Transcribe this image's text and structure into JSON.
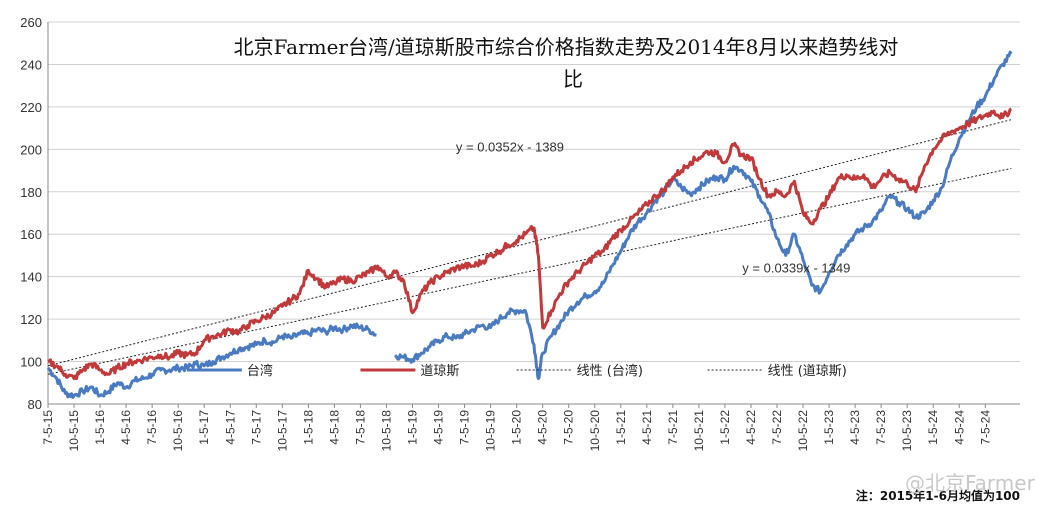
{
  "chart_data": {
    "type": "line",
    "title": "北京Farmer台湾/道琼斯股市综合价格指数走势及2014年8月以来趋势线对比",
    "ylim": [
      80,
      260
    ],
    "yticks": [
      80,
      100,
      120,
      140,
      160,
      180,
      200,
      220,
      240,
      260
    ],
    "xlim": [
      0,
      112
    ],
    "xticks": [
      {
        "x": 0,
        "label": "7-5-15"
      },
      {
        "x": 3,
        "label": "10-5-15"
      },
      {
        "x": 6,
        "label": "1-5-16"
      },
      {
        "x": 9,
        "label": "4-5-16"
      },
      {
        "x": 12,
        "label": "7-5-16"
      },
      {
        "x": 15,
        "label": "10-5-16"
      },
      {
        "x": 18,
        "label": "1-5-17"
      },
      {
        "x": 21,
        "label": "4-5-17"
      },
      {
        "x": 24,
        "label": "7-5-17"
      },
      {
        "x": 27,
        "label": "10-5-17"
      },
      {
        "x": 30,
        "label": "1-5-18"
      },
      {
        "x": 33,
        "label": "4-5-18"
      },
      {
        "x": 36,
        "label": "7-5-18"
      },
      {
        "x": 39,
        "label": "10-5-18"
      },
      {
        "x": 42,
        "label": "1-5-19"
      },
      {
        "x": 45,
        "label": "4-5-19"
      },
      {
        "x": 48,
        "label": "7-5-19"
      },
      {
        "x": 51,
        "label": "10-5-19"
      },
      {
        "x": 54,
        "label": "1-5-20"
      },
      {
        "x": 57,
        "label": "4-5-20"
      },
      {
        "x": 60,
        "label": "7-5-20"
      },
      {
        "x": 63,
        "label": "10-5-20"
      },
      {
        "x": 66,
        "label": "1-5-21"
      },
      {
        "x": 69,
        "label": "4-5-21"
      },
      {
        "x": 72,
        "label": "7-5-21"
      },
      {
        "x": 75,
        "label": "10-5-21"
      },
      {
        "x": 78,
        "label": "1-5-22"
      },
      {
        "x": 81,
        "label": "4-5-22"
      },
      {
        "x": 84,
        "label": "7-5-22"
      },
      {
        "x": 87,
        "label": "10-5-22"
      },
      {
        "x": 90,
        "label": "1-5-23"
      },
      {
        "x": 93,
        "label": "4-5-23"
      },
      {
        "x": 96,
        "label": "7-5-23"
      },
      {
        "x": 99,
        "label": "10-5-23"
      },
      {
        "x": 102,
        "label": "1-5-24"
      },
      {
        "x": 105,
        "label": "4-5-24"
      },
      {
        "x": 108,
        "label": "7-5-24"
      }
    ],
    "series": [
      {
        "name": "台湾",
        "color": "#4a7bc0",
        "points": [
          [
            0,
            97
          ],
          [
            1,
            92
          ],
          [
            2,
            85
          ],
          [
            3,
            84
          ],
          [
            4,
            86
          ],
          [
            5,
            88
          ],
          [
            6,
            84
          ],
          [
            7,
            86
          ],
          [
            8,
            90
          ],
          [
            9,
            88
          ],
          [
            10,
            91
          ],
          [
            11,
            92
          ],
          [
            12,
            94
          ],
          [
            13,
            96
          ],
          [
            14,
            96
          ],
          [
            15,
            97
          ],
          [
            16,
            97
          ],
          [
            17,
            99
          ],
          [
            18,
            98
          ],
          [
            19,
            100
          ],
          [
            20,
            102
          ],
          [
            21,
            104
          ],
          [
            22,
            106
          ],
          [
            23,
            107
          ],
          [
            24,
            108
          ],
          [
            25,
            110
          ],
          [
            26,
            109
          ],
          [
            27,
            112
          ],
          [
            28,
            111
          ],
          [
            29,
            113
          ],
          [
            30,
            113
          ],
          [
            31,
            115
          ],
          [
            32,
            114
          ],
          [
            33,
            116
          ],
          [
            34,
            115
          ],
          [
            35,
            117
          ],
          [
            36,
            116
          ],
          [
            37,
            115
          ],
          [
            38,
            112
          ],
          [
            39,
            null
          ],
          [
            40,
            103
          ],
          [
            41,
            102
          ],
          [
            42,
            101
          ],
          [
            43,
            104
          ],
          [
            44,
            107
          ],
          [
            45,
            110
          ],
          [
            46,
            112
          ],
          [
            47,
            111
          ],
          [
            48,
            113
          ],
          [
            49,
            115
          ],
          [
            50,
            117
          ],
          [
            51,
            116
          ],
          [
            52,
            120
          ],
          [
            53,
            123
          ],
          [
            54,
            124
          ],
          [
            55,
            124
          ],
          [
            56,
            108
          ],
          [
            56.5,
            92
          ],
          [
            57,
            104
          ],
          [
            58,
            112
          ],
          [
            59,
            118
          ],
          [
            60,
            124
          ],
          [
            61,
            128
          ],
          [
            62,
            131
          ],
          [
            63,
            133
          ],
          [
            64,
            137
          ],
          [
            65,
            145
          ],
          [
            66,
            152
          ],
          [
            67,
            160
          ],
          [
            68,
            166
          ],
          [
            69,
            170
          ],
          [
            70,
            176
          ],
          [
            71,
            180
          ],
          [
            72,
            186
          ],
          [
            73,
            182
          ],
          [
            74,
            179
          ],
          [
            75,
            182
          ],
          [
            76,
            185
          ],
          [
            77,
            187
          ],
          [
            78,
            186
          ],
          [
            79,
            192
          ],
          [
            80,
            190
          ],
          [
            81,
            185
          ],
          [
            82,
            178
          ],
          [
            83,
            170
          ],
          [
            84,
            158
          ],
          [
            85,
            150
          ],
          [
            86,
            160
          ],
          [
            87,
            148
          ],
          [
            88,
            136
          ],
          [
            89,
            133
          ],
          [
            90,
            142
          ],
          [
            91,
            150
          ],
          [
            92,
            155
          ],
          [
            93,
            160
          ],
          [
            94,
            163
          ],
          [
            95,
            166
          ],
          [
            96,
            171
          ],
          [
            97,
            178
          ],
          [
            98,
            175
          ],
          [
            99,
            172
          ],
          [
            100,
            168
          ],
          [
            101,
            170
          ],
          [
            102,
            176
          ],
          [
            103,
            182
          ],
          [
            104,
            195
          ],
          [
            105,
            205
          ],
          [
            106,
            213
          ],
          [
            107,
            220
          ],
          [
            108,
            225
          ],
          [
            109,
            233
          ],
          [
            110,
            240
          ],
          [
            111,
            245
          ]
        ]
      },
      {
        "name": "道琼斯",
        "color": "#c0393b",
        "points": [
          [
            0,
            100
          ],
          [
            1,
            98
          ],
          [
            2,
            94
          ],
          [
            3,
            92
          ],
          [
            4,
            96
          ],
          [
            5,
            99
          ],
          [
            6,
            96
          ],
          [
            7,
            94
          ],
          [
            8,
            97
          ],
          [
            9,
            99
          ],
          [
            10,
            100
          ],
          [
            11,
            101
          ],
          [
            12,
            102
          ],
          [
            13,
            103
          ],
          [
            14,
            102
          ],
          [
            15,
            104
          ],
          [
            16,
            103
          ],
          [
            17,
            104
          ],
          [
            18,
            110
          ],
          [
            19,
            112
          ],
          [
            20,
            113
          ],
          [
            21,
            115
          ],
          [
            22,
            114
          ],
          [
            23,
            117
          ],
          [
            24,
            119
          ],
          [
            25,
            121
          ],
          [
            26,
            123
          ],
          [
            27,
            126
          ],
          [
            28,
            129
          ],
          [
            29,
            132
          ],
          [
            30,
            143
          ],
          [
            31,
            139
          ],
          [
            32,
            135
          ],
          [
            33,
            137
          ],
          [
            34,
            139
          ],
          [
            35,
            138
          ],
          [
            36,
            140
          ],
          [
            37,
            142
          ],
          [
            38,
            145
          ],
          [
            39,
            140
          ],
          [
            40,
            142
          ],
          [
            41,
            138
          ],
          [
            42,
            123
          ],
          [
            43,
            132
          ],
          [
            44,
            137
          ],
          [
            45,
            140
          ],
          [
            46,
            142
          ],
          [
            47,
            144
          ],
          [
            48,
            145
          ],
          [
            49,
            145
          ],
          [
            50,
            147
          ],
          [
            51,
            150
          ],
          [
            52,
            152
          ],
          [
            53,
            155
          ],
          [
            54,
            157
          ],
          [
            55,
            160
          ],
          [
            56,
            163
          ],
          [
            56.5,
            150
          ],
          [
            57,
            116
          ],
          [
            58,
            124
          ],
          [
            59,
            132
          ],
          [
            60,
            138
          ],
          [
            61,
            142
          ],
          [
            62,
            146
          ],
          [
            63,
            150
          ],
          [
            64,
            152
          ],
          [
            65,
            158
          ],
          [
            66,
            162
          ],
          [
            67,
            166
          ],
          [
            68,
            170
          ],
          [
            69,
            174
          ],
          [
            70,
            178
          ],
          [
            71,
            181
          ],
          [
            72,
            187
          ],
          [
            73,
            190
          ],
          [
            74,
            194
          ],
          [
            75,
            196
          ],
          [
            76,
            199
          ],
          [
            77,
            198
          ],
          [
            78,
            194
          ],
          [
            79,
            202
          ],
          [
            80,
            197
          ],
          [
            81,
            196
          ],
          [
            82,
            186
          ],
          [
            83,
            178
          ],
          [
            84,
            180
          ],
          [
            85,
            178
          ],
          [
            86,
            185
          ],
          [
            87,
            170
          ],
          [
            88,
            165
          ],
          [
            89,
            172
          ],
          [
            90,
            178
          ],
          [
            91,
            186
          ],
          [
            92,
            188
          ],
          [
            93,
            186
          ],
          [
            94,
            188
          ],
          [
            95,
            182
          ],
          [
            96,
            186
          ],
          [
            97,
            189
          ],
          [
            98,
            186
          ],
          [
            99,
            184
          ],
          [
            100,
            180
          ],
          [
            101,
            192
          ],
          [
            102,
            200
          ],
          [
            103,
            205
          ],
          [
            104,
            208
          ],
          [
            105,
            210
          ],
          [
            106,
            212
          ],
          [
            107,
            214
          ],
          [
            108,
            216
          ],
          [
            109,
            218
          ],
          [
            110,
            215
          ],
          [
            111,
            219
          ]
        ]
      }
    ],
    "trendlines": [
      {
        "name": "线性 (台湾)",
        "from": [
          0,
          94
        ],
        "to": [
          111,
          191
        ],
        "equation": "y = 0.0339x - 1349"
      },
      {
        "name": "线性 (道琼斯)",
        "from": [
          0,
          98
        ],
        "to": [
          111,
          214
        ],
        "equation": "y = 0.0352x - 1389"
      }
    ],
    "equation_positions": [
      {
        "text": "y = 0.0352x - 1389",
        "x": 47,
        "y": 199
      },
      {
        "text": "y = 0.0339x - 1349",
        "x": 80,
        "y": 142
      }
    ],
    "legend": {
      "placement": "bottom-inside",
      "items": [
        {
          "label": "台湾",
          "color": "#4a7bc0",
          "style": "solid"
        },
        {
          "label": "道琼斯",
          "color": "#c0393b",
          "style": "solid"
        },
        {
          "label": "线性 (台湾)",
          "color": "#222222",
          "style": "dotted"
        },
        {
          "label": "线性 (道琼斯)",
          "color": "#222222",
          "style": "dotted"
        }
      ]
    },
    "note": "注：2015年1-6月均值为100",
    "watermark": "@北京Farmer",
    "grid": true
  }
}
